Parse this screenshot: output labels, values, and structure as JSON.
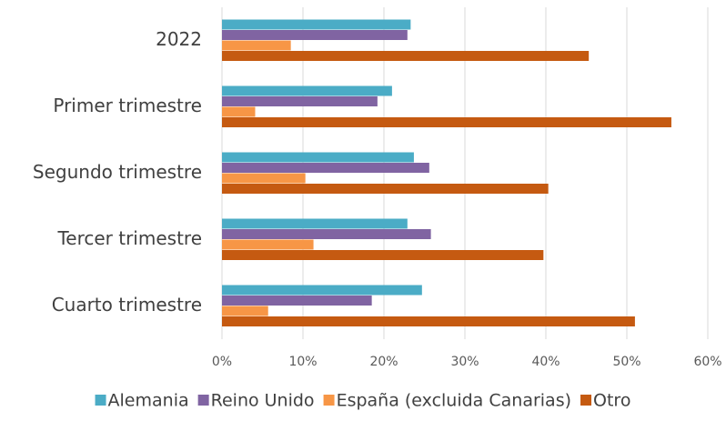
{
  "chart_data": {
    "type": "bar",
    "orientation": "horizontal",
    "categories": [
      "2022",
      "Primer trimestre",
      "Segundo trimestre",
      "Tercer trimestre",
      "Cuarto trimestre"
    ],
    "series": [
      {
        "name": "Alemania",
        "color": "#4bacc6",
        "values": [
          23.3,
          21.0,
          23.7,
          22.9,
          24.7
        ]
      },
      {
        "name": "Reino Unido",
        "color": "#8064a2",
        "values": [
          22.9,
          19.2,
          25.6,
          25.8,
          18.5
        ]
      },
      {
        "name": "España (excluida Canarias)",
        "color": "#f79646",
        "values": [
          8.5,
          4.1,
          10.3,
          11.3,
          5.7
        ]
      },
      {
        "name": "Otro",
        "color": "#c55a11",
        "values": [
          45.3,
          55.5,
          40.3,
          39.7,
          51.0
        ]
      }
    ],
    "xlim": [
      0,
      60
    ],
    "xticks": [
      {
        "value": 0,
        "label": "0%"
      },
      {
        "value": 10,
        "label": "10%"
      },
      {
        "value": 20,
        "label": "20%"
      },
      {
        "value": 30,
        "label": "30%"
      },
      {
        "value": 40,
        "label": "40%"
      },
      {
        "value": 50,
        "label": "50%"
      },
      {
        "value": 60,
        "label": "60%"
      }
    ],
    "grid": true,
    "legend": "bottom"
  }
}
